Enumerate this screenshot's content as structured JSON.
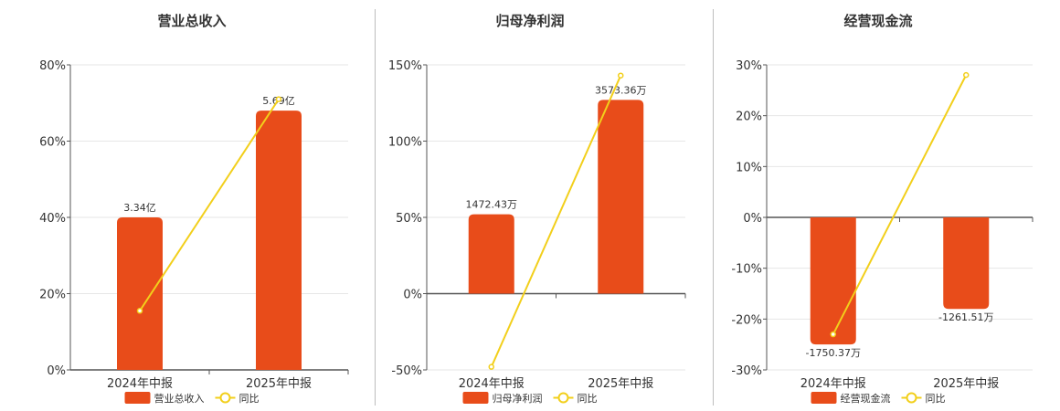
{
  "colors": {
    "bar": "#e84c1a",
    "line": "#f2cf1b",
    "grid": "#e6e6e6",
    "axis": "#555555"
  },
  "chart_data": [
    {
      "type": "bar",
      "title": "营业总收入",
      "categories": [
        "2024年中报",
        "2025年中报"
      ],
      "series": [
        {
          "name": "营业总收入",
          "type": "bar",
          "values": [
            40,
            68
          ],
          "labels": [
            "3.34亿",
            "5.69亿"
          ]
        },
        {
          "name": "同比",
          "type": "line",
          "values": [
            15.5,
            71
          ]
        }
      ],
      "ylim": [
        0,
        80
      ],
      "yticks": [
        0,
        20,
        40,
        60,
        80
      ],
      "ytick_labels": [
        "0%",
        "20%",
        "40%",
        "60%",
        "80%"
      ],
      "grid": true,
      "legend": "bottom"
    },
    {
      "type": "bar",
      "title": "归母净利润",
      "categories": [
        "2024年中报",
        "2025年中报"
      ],
      "series": [
        {
          "name": "归母净利润",
          "type": "bar",
          "values": [
            52,
            127
          ],
          "labels": [
            "1472.43万",
            "3573.36万"
          ]
        },
        {
          "name": "同比",
          "type": "line",
          "values": [
            -48,
            143
          ]
        }
      ],
      "ylim": [
        -50,
        150
      ],
      "yticks": [
        -50,
        0,
        50,
        100,
        150
      ],
      "ytick_labels": [
        "-50%",
        "0%",
        "50%",
        "100%",
        "150%"
      ],
      "grid": true,
      "legend": "bottom"
    },
    {
      "type": "bar",
      "title": "经营现金流",
      "categories": [
        "2024年中报",
        "2025年中报"
      ],
      "series": [
        {
          "name": "经营现金流",
          "type": "bar",
          "values": [
            -25,
            -18
          ],
          "labels": [
            "-1750.37万",
            "-1261.51万"
          ]
        },
        {
          "name": "同比",
          "type": "line",
          "values": [
            -23,
            28
          ]
        }
      ],
      "ylim": [
        -30,
        30
      ],
      "yticks": [
        -30,
        -20,
        -10,
        0,
        10,
        20,
        30
      ],
      "ytick_labels": [
        "-30%",
        "-20%",
        "-10%",
        "0%",
        "10%",
        "20%",
        "30%"
      ],
      "grid": true,
      "legend": "bottom"
    }
  ]
}
